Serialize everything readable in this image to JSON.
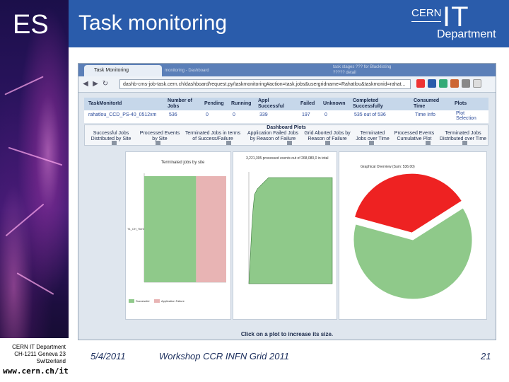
{
  "sidebar": {
    "abbrev": "ES",
    "address": [
      "CERN IT Department",
      "CH-1211 Geneva 23",
      "Switzerland"
    ],
    "url": "www.cern.ch/it"
  },
  "header": {
    "title": "Task monitoring",
    "logo": {
      "cern": "CERN",
      "it": "IT",
      "department": "Department"
    }
  },
  "browser": {
    "tab_label": "Task Monitoring",
    "tab_faded_1": "monitoring - Dashboard",
    "tab_faded_2a": "task stages ??? for Blacklisting",
    "tab_faded_2b": "????? detail",
    "url": "dashb-cms-job-task.cern.ch/dashboard/request.py/taskmonitoring#action=task.jobs&usergridname=Rahatlou&taskmonid=rahat..."
  },
  "dashboard_table": {
    "headers": [
      "TaskMonitorId",
      "Number of Jobs",
      "Pending",
      "Running",
      "Appl Successful",
      "Failed",
      "Unknown",
      "Completed Successfully",
      "Consumed Time",
      "Plots"
    ],
    "row": [
      "rahatlou_CCD_PS-40_0512xm",
      "536",
      "0",
      "0",
      "339",
      "197",
      "0",
      "535 out of 536",
      "Time Info",
      "Plot Selection"
    ]
  },
  "plots_bar": {
    "title": "Dashboard Plots",
    "links": [
      "Successful Jobs Distributed by Site",
      "Processed Events by Site",
      "Terminated Jobs in terms of Success/Failure",
      "Application Failed Jobs by Reason of Failure",
      "Grid Aborted Jobs by Reason of Failure",
      "Terminated Jobs over Time",
      "Processed Events Cumulative Plot",
      "Terminated Jobs Distributed over Time"
    ]
  },
  "plots": {
    "left_title": "Terminated jobs by site",
    "left_site": "T1_CH_Tier0",
    "left_legend": [
      "Successful",
      "Application Failure"
    ],
    "middle_title": "3,221,395 processed events out of 268,080,0 in total",
    "right_title": "Graphical Overview (Sum: 536.00)",
    "caption": "Click on a plot to increase its size."
  },
  "chart_data": [
    {
      "type": "bar",
      "title": "Terminated jobs by site",
      "categories": [
        "T1_CH_Tier0"
      ],
      "series": [
        {
          "name": "Successful",
          "values": [
            339
          ]
        },
        {
          "name": "Application Failure",
          "values": [
            197
          ]
        }
      ]
    },
    {
      "type": "pie",
      "title": "Graphical Overview (Sum: 536.00)",
      "values": [
        339,
        197
      ],
      "colors": [
        "#8fc98a",
        "#ee2222"
      ]
    }
  ],
  "footer": {
    "date": "5/4/2011",
    "event": "Workshop CCR INFN Grid 2011",
    "page": "21"
  },
  "colors": {
    "header_blue": "#2a5cab",
    "footer_text": "#1a2d5c",
    "success_green": "#8fc98a",
    "failure_pink": "#e8b4b4",
    "failure_red": "#ee2222"
  }
}
